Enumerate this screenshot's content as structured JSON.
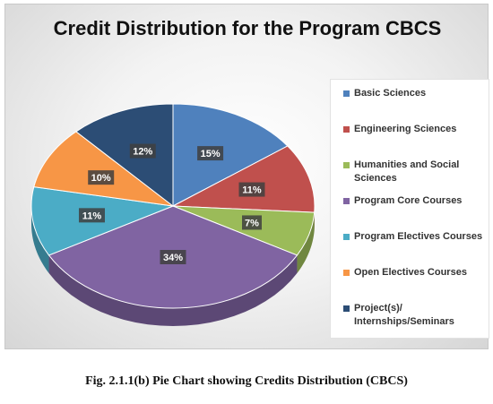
{
  "chart_data": {
    "type": "pie",
    "title": "Credit Distribution for the Program CBCS",
    "categories": [
      "Basic Sciences",
      "Engineering Sciences",
      "Humanities and Social Sciences",
      "Program Core Courses",
      "Program Electives Courses",
      "Open Electives Courses",
      "Project(s)/ Internships/Seminars"
    ],
    "values": [
      15,
      11,
      7,
      34,
      11,
      10,
      12
    ],
    "data_labels": [
      "15%",
      "11%",
      "7%",
      "34%",
      "11%",
      "10%",
      "12%"
    ],
    "colors": [
      "#4f81bd",
      "#c0504d",
      "#9bbb59",
      "#8064a2",
      "#4bacc6",
      "#f79646",
      "#2c4d75"
    ],
    "legend_position": "right",
    "style": "3d"
  },
  "legend": [
    {
      "label": "Basic Sciences",
      "color": "#4f81bd"
    },
    {
      "label": "Engineering Sciences",
      "color": "#c0504d"
    },
    {
      "label": "Humanities and Social Sciences",
      "color": "#9bbb59"
    },
    {
      "label": "Program Core Courses",
      "color": "#8064a2"
    },
    {
      "label": "Program Electives Courses",
      "color": "#4bacc6"
    },
    {
      "label": " Open Electives Courses",
      "color": "#f79646"
    },
    {
      "label": "Project(s)/ Internships/Seminars",
      "color": "#2c4d75"
    }
  ],
  "caption": "Fig. 2.1.1(b) Pie Chart showing Credits Distribution (CBCS)"
}
